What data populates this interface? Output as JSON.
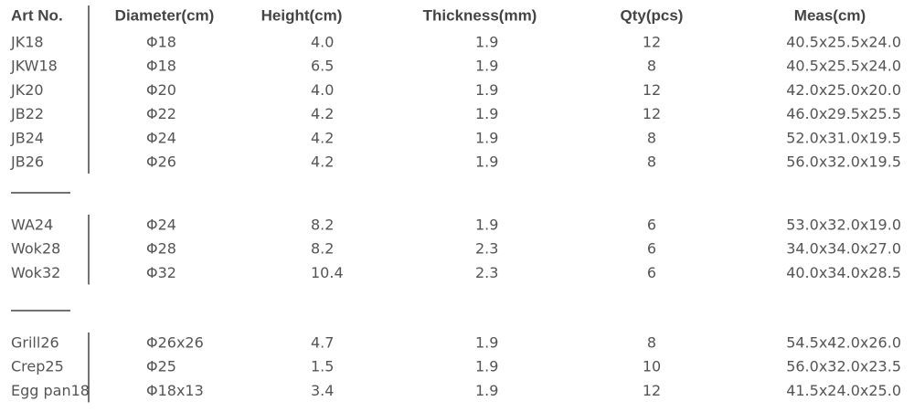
{
  "table": {
    "header": [
      "Art No.",
      "Diameter(cm)",
      "Height(cm)",
      "Thickness(mm)",
      "Qty(pcs)",
      "Meas(cm)"
    ],
    "groups": [
      {
        "rows": [
          [
            "JK18",
            "Φ18",
            "4.0",
            "1.9",
            "12",
            "40.5x25.5x24.0"
          ],
          [
            "JKW18",
            "Φ18",
            "6.5",
            "1.9",
            "8",
            "40.5x25.5x24.0"
          ],
          [
            "JK20",
            "Φ20",
            "4.0",
            "1.9",
            "12",
            "42.0x25.0x20.0"
          ],
          [
            "JB22",
            "Φ22",
            "4.2",
            "1.9",
            "12",
            "46.0x29.5x25.5"
          ],
          [
            "JB24",
            "Φ24",
            "4.2",
            "1.9",
            "8",
            "52.0x31.0x19.5"
          ],
          [
            "JB26",
            "Φ26",
            "4.2",
            "1.9",
            "8",
            "56.0x32.0x19.5"
          ]
        ]
      },
      {
        "rows": [
          [
            "WA24",
            "Φ24",
            "8.2",
            "1.9",
            "6",
            "53.0x32.0x19.0"
          ],
          [
            "Wok28",
            "Φ28",
            "8.2",
            "2.3",
            "6",
            "34.0x34.0x27.0"
          ],
          [
            "Wok32",
            "Φ32",
            "10.4",
            "2.3",
            "6",
            "40.0x34.0x28.5"
          ]
        ]
      },
      {
        "rows": [
          [
            "Grill26",
            "Φ26x26",
            "4.7",
            "1.9",
            "8",
            "54.5x42.0x26.0"
          ],
          [
            "Crep25",
            "Φ25",
            "1.5",
            "1.9",
            "10",
            "56.0x32.0x23.5"
          ],
          [
            "Egg pan18",
            "Φ18x13",
            "3.4",
            "1.9",
            "12",
            "41.5x24.0x25.0"
          ]
        ]
      }
    ]
  }
}
